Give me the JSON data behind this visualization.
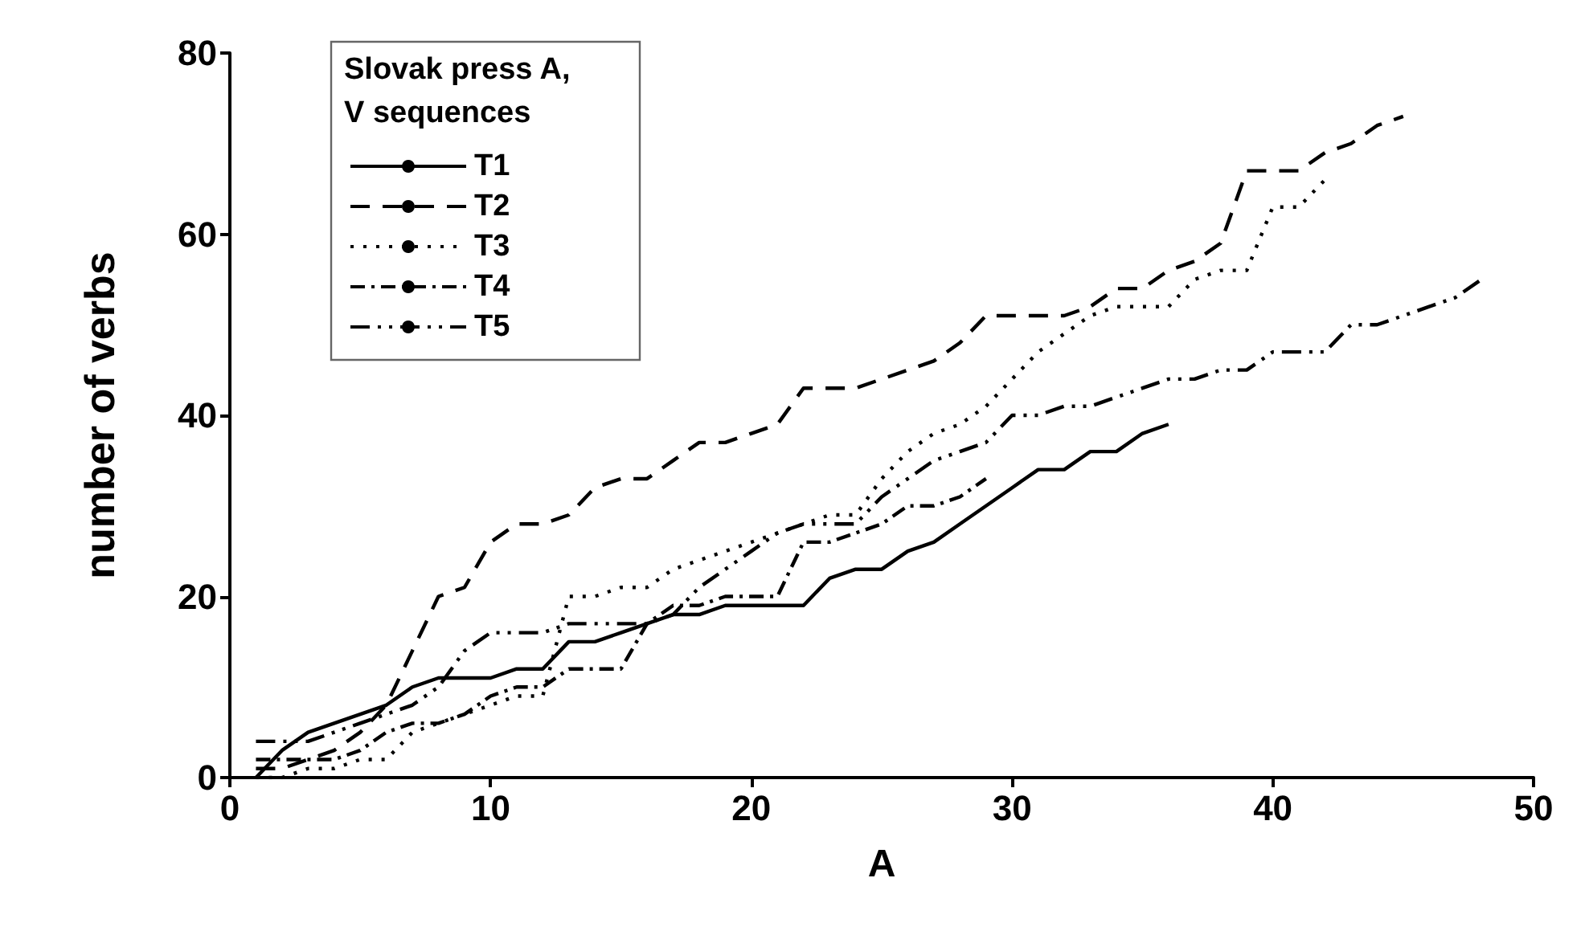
{
  "chart_data": {
    "type": "line",
    "xlabel": "A",
    "ylabel": "number of verbs",
    "legend_title": "Slovak press A,V sequences",
    "legend": "top left",
    "grid": false,
    "marker": "none",
    "xlim": [
      0,
      50
    ],
    "xticks": [
      0,
      10,
      20,
      30,
      40,
      50
    ],
    "ylim": [
      0,
      80
    ],
    "yticks": [
      0,
      20,
      40,
      60,
      80
    ],
    "series": [
      {
        "name": "T1",
        "color": "#000000",
        "line_style": "solid",
        "x": [
          1,
          2,
          3,
          4,
          5,
          6,
          7,
          8,
          9,
          10,
          11,
          12,
          13,
          14,
          15,
          16,
          17,
          18,
          19,
          20,
          21,
          22,
          23,
          24,
          25,
          26,
          27,
          28,
          29,
          30,
          31,
          32,
          33,
          34,
          35,
          36
        ],
        "values": [
          0,
          3,
          5,
          6,
          7,
          8,
          10,
          11,
          11,
          11,
          12,
          12,
          15,
          15,
          16,
          17,
          18,
          18,
          19,
          19,
          19,
          19,
          22,
          23,
          23,
          25,
          26,
          28,
          30,
          32,
          34,
          34,
          36,
          36,
          38,
          39
        ]
      },
      {
        "name": "T2",
        "color": "#000000",
        "line_style": "dashed",
        "x": [
          1,
          2,
          3,
          4,
          5,
          6,
          7,
          8,
          9,
          10,
          11,
          12,
          13,
          14,
          15,
          16,
          17,
          18,
          19,
          20,
          21,
          22,
          23,
          24,
          25,
          26,
          27,
          28,
          29,
          30,
          31,
          32,
          33,
          34,
          35,
          36,
          37,
          38,
          39,
          40,
          41,
          42,
          43,
          44,
          45
        ],
        "values": [
          1,
          1,
          2,
          3,
          5,
          8,
          14,
          20,
          21,
          26,
          28,
          28,
          29,
          32,
          33,
          33,
          35,
          37,
          37,
          38,
          39,
          43,
          43,
          43,
          44,
          45,
          46,
          48,
          51,
          51,
          51,
          51,
          52,
          54,
          54,
          56,
          57,
          59,
          67,
          67,
          67,
          69,
          70,
          72,
          73
        ]
      },
      {
        "name": "T3",
        "color": "#000000",
        "line_style": "dotted",
        "x": [
          1,
          2,
          3,
          4,
          5,
          6,
          7,
          8,
          9,
          10,
          11,
          12,
          13,
          14,
          15,
          16,
          17,
          18,
          19,
          20,
          21,
          22,
          23,
          24,
          25,
          26,
          27,
          28,
          29,
          30,
          31,
          32,
          33,
          34,
          35,
          36,
          37,
          38,
          39,
          40,
          41,
          42
        ],
        "values": [
          0,
          0,
          1,
          1,
          2,
          2,
          5,
          6,
          7,
          8,
          9,
          9,
          20,
          20,
          21,
          21,
          23,
          24,
          25,
          26,
          27,
          28,
          29,
          29,
          33,
          36,
          38,
          39,
          41,
          44,
          47,
          49,
          51,
          52,
          52,
          52,
          55,
          56,
          56,
          63,
          63,
          66
        ]
      },
      {
        "name": "T4",
        "color": "#000000",
        "line_style": "dashdot",
        "x": [
          1,
          2,
          3,
          4,
          5,
          6,
          7,
          8,
          9,
          10,
          11,
          12,
          13,
          14,
          15,
          16,
          17,
          18,
          19,
          20,
          21,
          22,
          23,
          24,
          25,
          26,
          27,
          28,
          29
        ],
        "values": [
          2,
          2,
          2,
          2,
          3,
          5,
          6,
          6,
          7,
          9,
          10,
          10,
          12,
          12,
          12,
          17,
          19,
          19,
          20,
          20,
          20,
          26,
          26,
          27,
          28,
          30,
          30,
          31,
          33
        ]
      },
      {
        "name": "T5",
        "color": "#000000",
        "line_style": "dashdotdot",
        "x": [
          1,
          2,
          3,
          4,
          5,
          6,
          7,
          8,
          9,
          10,
          11,
          12,
          13,
          14,
          15,
          16,
          17,
          18,
          19,
          20,
          21,
          22,
          23,
          24,
          25,
          26,
          27,
          28,
          29,
          30,
          31,
          32,
          33,
          34,
          35,
          36,
          37,
          38,
          39,
          40,
          41,
          42,
          43,
          44,
          45,
          46,
          47,
          48
        ],
        "values": [
          4,
          4,
          4,
          5,
          6,
          7,
          8,
          10,
          14,
          16,
          16,
          16,
          17,
          17,
          17,
          17,
          18,
          21,
          23,
          25,
          27,
          28,
          28,
          28,
          31,
          33,
          35,
          36,
          37,
          40,
          40,
          41,
          41,
          42,
          43,
          44,
          44,
          45,
          45,
          47,
          47,
          47,
          50,
          50,
          51,
          52,
          53,
          55
        ]
      }
    ]
  }
}
